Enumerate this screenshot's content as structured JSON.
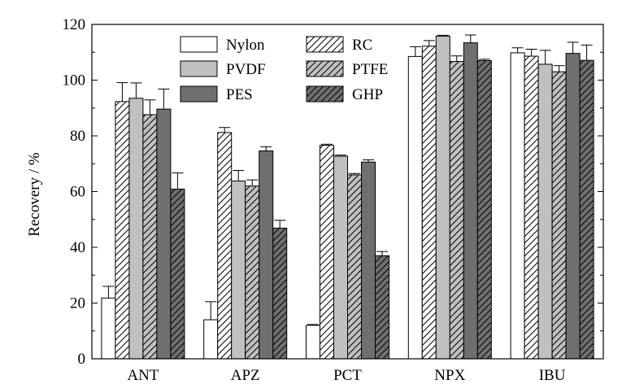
{
  "chart_data": {
    "type": "bar",
    "title": "",
    "xlabel": "",
    "ylabel": "Recovery / %",
    "ylim": [
      0,
      120
    ],
    "yticks": [
      0,
      20,
      40,
      60,
      80,
      100,
      120
    ],
    "grid": false,
    "legend_position": "top-center",
    "categories": [
      "ANT",
      "APZ",
      "PCT",
      "NPX",
      "IBU"
    ],
    "series": [
      {
        "name": "Nylon",
        "fill": "#ffffff",
        "pattern": "none",
        "values": [
          21.8,
          14.0,
          12.0,
          108.5,
          109.8
        ],
        "errors": [
          4.2,
          6.5,
          0.3,
          3.5,
          1.8
        ]
      },
      {
        "name": "RC",
        "fill": "#ffffff",
        "pattern": "hatch",
        "values": [
          92.3,
          81.2,
          76.6,
          112.2,
          108.6
        ],
        "errors": [
          6.8,
          1.8,
          0.4,
          2.0,
          2.5
        ]
      },
      {
        "name": "PVDF",
        "fill": "#c0c0c0",
        "pattern": "none",
        "values": [
          93.5,
          63.8,
          72.7,
          115.8,
          105.7
        ],
        "errors": [
          5.5,
          3.8,
          0.4,
          0.3,
          5.0
        ]
      },
      {
        "name": "PTFE",
        "fill": "#c0c0c0",
        "pattern": "hatch",
        "values": [
          87.6,
          62.0,
          66.0,
          106.7,
          103.0
        ],
        "errors": [
          5.3,
          2.2,
          0.5,
          2.0,
          2.2
        ]
      },
      {
        "name": "PES",
        "fill": "#6f6f6f",
        "pattern": "none",
        "values": [
          89.6,
          74.6,
          70.6,
          113.4,
          109.6
        ],
        "errors": [
          7.2,
          1.5,
          0.8,
          2.8,
          4.0
        ]
      },
      {
        "name": "GHP",
        "fill": "#6f6f6f",
        "pattern": "hatch",
        "values": [
          60.9,
          46.9,
          37.0,
          107.0,
          107.1
        ],
        "errors": [
          5.8,
          2.8,
          1.5,
          0.5,
          5.5
        ]
      }
    ]
  }
}
